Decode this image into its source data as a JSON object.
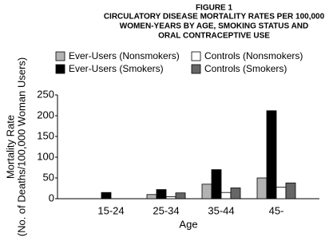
{
  "chart_data": {
    "type": "bar",
    "title": [
      "FIGURE 1",
      "CIRCULATORY DISEASE MORTALITY RATES PER 100,000",
      "WOMEN-YEARS BY AGE, SMOKING STATUS AND",
      "ORAL CONTRACEPTIVE USE"
    ],
    "y_label": [
      "Mortality Rate",
      "(No. of Deaths/100,000 Woman Users)"
    ],
    "x_label": "Age",
    "categories": [
      "15-24",
      "25-34",
      "35-44",
      "45-"
    ],
    "series": [
      {
        "name": "Ever-Users (Nonsmokers)",
        "color": "#b3b3b3",
        "values": [
          0,
          10,
          35,
          50
        ]
      },
      {
        "name": "Ever-Users (Smokers)",
        "color": "#000000",
        "values": [
          15,
          22,
          70,
          212
        ]
      },
      {
        "name": "Controls (Nonsmokers)",
        "color": "#ffffff",
        "values": [
          0,
          5,
          15,
          28
        ]
      },
      {
        "name": "Controls (Smokers)",
        "color": "#666666",
        "values": [
          0,
          14,
          26,
          38
        ]
      }
    ],
    "ylim": [
      0,
      250
    ],
    "yticks": [
      0,
      50,
      100,
      150,
      200,
      250
    ]
  }
}
